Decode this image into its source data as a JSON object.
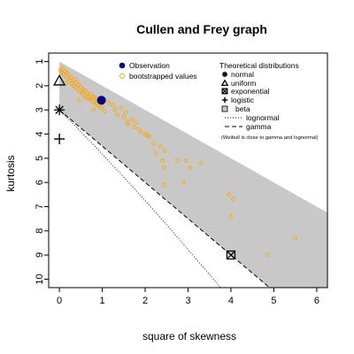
{
  "chart_data": {
    "type": "scatter",
    "title": "Cullen and Frey graph",
    "xlabel": "square of skewness",
    "ylabel": "kurtosis",
    "xlim": [
      -0.25,
      6.25
    ],
    "ylim": [
      10.35,
      0.65
    ],
    "y_axis_inverted": true,
    "x_ticks": [
      0,
      1,
      2,
      3,
      4,
      5,
      6
    ],
    "y_ticks": [
      1,
      2,
      3,
      4,
      5,
      6,
      7,
      8,
      9,
      10
    ],
    "grid": false,
    "legend_observation": {
      "position": "top-center",
      "entries": [
        {
          "label": "Observation",
          "marker": "filled-circle",
          "color": "#00008B"
        },
        {
          "label": "bootstrapped values",
          "marker": "open-circle",
          "color": "#FFA500"
        }
      ]
    },
    "legend_theoretical": {
      "title": "Theoretical distributions",
      "position": "top-right",
      "entries": [
        {
          "label": "normal",
          "marker": "asterisk"
        },
        {
          "label": "uniform",
          "marker": "triangle"
        },
        {
          "label": "exponential",
          "marker": "boxed-x"
        },
        {
          "label": "logistic",
          "marker": "plus"
        },
        {
          "label": "beta",
          "marker": "gray-box"
        },
        {
          "label": "lognormal",
          "marker": "dotted-line"
        },
        {
          "label": "gamma",
          "marker": "dashed-line"
        }
      ],
      "note": "(Weibull is close to gamma and lognormal)"
    },
    "beta_region_color": "#C8C8C8",
    "theoretical_points": {
      "normal": {
        "x": 0,
        "y": 3
      },
      "uniform": {
        "x": 0,
        "y": 1.8
      },
      "exponential": {
        "x": 4,
        "y": 9
      },
      "logistic": {
        "x": 0,
        "y": 4.2
      }
    },
    "observation": {
      "x": 0.98,
      "y": 2.6,
      "color": "#00008B"
    },
    "bootstrap": {
      "color": "#FFA500",
      "points": [
        [
          0.02,
          1.35
        ],
        [
          0.04,
          1.45
        ],
        [
          0.07,
          1.3
        ],
        [
          0.1,
          1.5
        ],
        [
          0.12,
          1.4
        ],
        [
          0.15,
          1.6
        ],
        [
          0.18,
          1.45
        ],
        [
          0.2,
          1.7
        ],
        [
          0.22,
          1.55
        ],
        [
          0.25,
          1.8
        ],
        [
          0.27,
          1.65
        ],
        [
          0.3,
          1.9
        ],
        [
          0.32,
          2.0
        ],
        [
          0.35,
          1.75
        ],
        [
          0.37,
          2.05
        ],
        [
          0.4,
          1.85
        ],
        [
          0.42,
          2.15
        ],
        [
          0.45,
          1.95
        ],
        [
          0.48,
          2.25
        ],
        [
          0.5,
          2.05
        ],
        [
          0.53,
          2.3
        ],
        [
          0.55,
          2.15
        ],
        [
          0.58,
          2.4
        ],
        [
          0.6,
          2.2
        ],
        [
          0.62,
          2.5
        ],
        [
          0.65,
          2.3
        ],
        [
          0.68,
          2.45
        ],
        [
          0.7,
          2.55
        ],
        [
          0.72,
          2.35
        ],
        [
          0.75,
          2.6
        ],
        [
          0.78,
          2.45
        ],
        [
          0.8,
          2.7
        ],
        [
          0.82,
          2.5
        ],
        [
          0.85,
          2.75
        ],
        [
          0.88,
          2.55
        ],
        [
          0.9,
          2.8
        ],
        [
          0.92,
          2.65
        ],
        [
          0.95,
          2.9
        ],
        [
          0.98,
          2.7
        ],
        [
          1.0,
          2.85
        ],
        [
          1.05,
          3.05
        ],
        [
          0.8,
          3.0
        ],
        [
          0.45,
          2.6
        ],
        [
          0.15,
          1.9
        ],
        [
          1.15,
          2.7
        ],
        [
          1.25,
          2.8
        ],
        [
          1.3,
          3.0
        ],
        [
          1.35,
          3.2
        ],
        [
          1.45,
          2.9
        ],
        [
          1.5,
          3.3
        ],
        [
          1.55,
          3.1
        ],
        [
          1.58,
          3.5
        ],
        [
          1.6,
          3.6
        ],
        [
          1.7,
          3.4
        ],
        [
          1.75,
          3.7
        ],
        [
          1.8,
          3.5
        ],
        [
          1.85,
          3.8
        ],
        [
          1.9,
          3.9
        ],
        [
          2.0,
          4.0
        ],
        [
          2.05,
          4.05
        ],
        [
          2.1,
          4.1
        ],
        [
          2.2,
          4.4
        ],
        [
          2.35,
          4.5
        ],
        [
          2.45,
          4.7
        ],
        [
          2.4,
          5.1
        ],
        [
          2.25,
          4.8
        ],
        [
          2.45,
          5.4
        ],
        [
          2.75,
          5.1
        ],
        [
          2.9,
          6.0
        ],
        [
          2.95,
          5.1
        ],
        [
          3.05,
          5.4
        ],
        [
          3.3,
          5.2
        ],
        [
          2.45,
          6.1
        ],
        [
          3.95,
          6.5
        ],
        [
          4.05,
          6.7
        ],
        [
          4.0,
          7.4
        ],
        [
          4.85,
          9.0
        ],
        [
          5.5,
          8.3
        ]
      ]
    }
  }
}
